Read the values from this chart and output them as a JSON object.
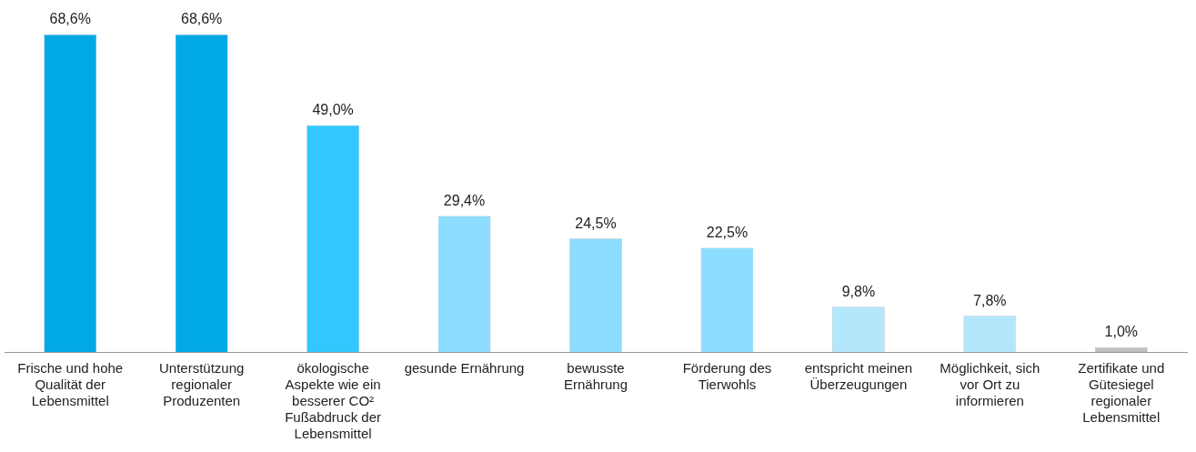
{
  "chart_data": {
    "type": "bar",
    "categories": [
      "Frische und hohe Qualität der Lebensmittel",
      "Unterstützung regionaler Produzenten",
      "ökologische Aspekte wie ein besserer CO² Fußabdruck der Lebensmittel",
      "gesunde Ernährung",
      "bewusste Ernährung",
      "Förderung des Tierwohls",
      "entspricht meinen Überzeugungen",
      "Möglichkeit, sich vor Ort zu informieren",
      "Zertifikate und Gütesiegel regionaler Lebensmittel"
    ],
    "values": [
      68.6,
      68.6,
      49.0,
      29.4,
      24.5,
      22.5,
      9.8,
      7.8,
      1.0
    ],
    "colors": [
      "#00a9e6",
      "#00a9e6",
      "#33c7ff",
      "#8cddff",
      "#8cddff",
      "#8cddff",
      "#b3e8fc",
      "#b3e8fc",
      "#c0c0c0"
    ],
    "value_labels": [
      "68,6%",
      "68,6%",
      "49,0%",
      "29,4%",
      "24,5%",
      "22,5%",
      "9,8%",
      "7,8%",
      "1,0%"
    ],
    "grid": false,
    "legend": false
  }
}
